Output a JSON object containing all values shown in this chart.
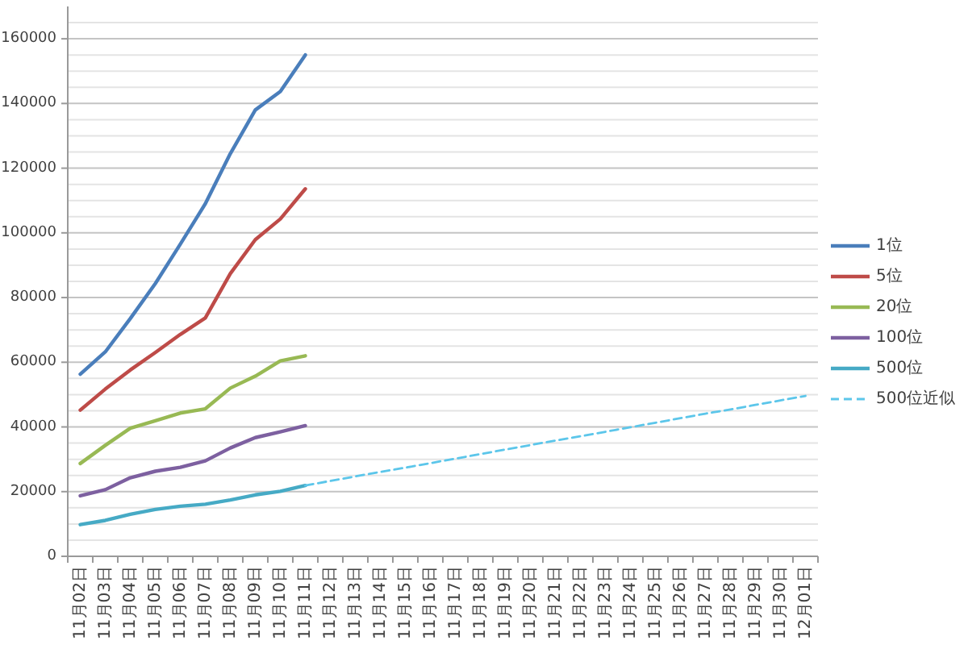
{
  "chart_data": {
    "type": "line",
    "categories": [
      "11月02日",
      "11月03日",
      "11月04日",
      "11月05日",
      "11月06日",
      "11月07日",
      "11月08日",
      "11月09日",
      "11月10日",
      "11月11日",
      "11月12日",
      "11月13日",
      "11月14日",
      "11月15日",
      "11月16日",
      "11月17日",
      "11月18日",
      "11月19日",
      "11月20日",
      "11月21日",
      "11月22日",
      "11月23日",
      "11月24日",
      "11月25日",
      "11月26日",
      "11月27日",
      "11月28日",
      "11月29日",
      "11月30日",
      "12月01日"
    ],
    "series": [
      {
        "name": "1位",
        "color": "#4a7ebb",
        "values": [
          56300,
          63200,
          73500,
          84300,
          96500,
          109000,
          124500,
          138000,
          143700,
          155000,
          null,
          null,
          null,
          null,
          null,
          null,
          null,
          null,
          null,
          null,
          null,
          null,
          null,
          null,
          null,
          null,
          null,
          null,
          null,
          null
        ]
      },
      {
        "name": "5位",
        "color": "#be4b48",
        "values": [
          45200,
          51700,
          57600,
          63000,
          68600,
          73700,
          87400,
          97900,
          104300,
          113600,
          null,
          null,
          null,
          null,
          null,
          null,
          null,
          null,
          null,
          null,
          null,
          null,
          null,
          null,
          null,
          null,
          null,
          null,
          null,
          null
        ]
      },
      {
        "name": "20位",
        "color": "#98b954",
        "values": [
          28700,
          34300,
          39600,
          41900,
          44300,
          45600,
          52000,
          55700,
          60400,
          62000,
          null,
          null,
          null,
          null,
          null,
          null,
          null,
          null,
          null,
          null,
          null,
          null,
          null,
          null,
          null,
          null,
          null,
          null,
          null,
          null
        ]
      },
      {
        "name": "100位",
        "color": "#7d60a0",
        "values": [
          18700,
          20600,
          24300,
          26300,
          27500,
          29500,
          33500,
          36700,
          38500,
          40400,
          null,
          null,
          null,
          null,
          null,
          null,
          null,
          null,
          null,
          null,
          null,
          null,
          null,
          null,
          null,
          null,
          null,
          null,
          null,
          null
        ]
      },
      {
        "name": "500位",
        "color": "#46aac5",
        "values": [
          9800,
          11100,
          13000,
          14500,
          15500,
          16100,
          17400,
          19000,
          20100,
          21900,
          null,
          null,
          null,
          null,
          null,
          null,
          null,
          null,
          null,
          null,
          null,
          null,
          null,
          null,
          null,
          null,
          null,
          null,
          null,
          null
        ]
      },
      {
        "name": "500位近似",
        "color": "#5cc6ea",
        "line_style": "dashed",
        "values": [
          null,
          null,
          null,
          null,
          null,
          null,
          null,
          null,
          null,
          21900,
          23300,
          24700,
          26100,
          27400,
          28800,
          30200,
          31600,
          33000,
          34400,
          35800,
          37100,
          38500,
          39900,
          41300,
          42700,
          44100,
          45400,
          46800,
          48200,
          49600
        ]
      }
    ],
    "ylim": [
      0,
      170000
    ],
    "yticks": [
      0,
      {
        "value": 5000,
        "label": null
      },
      {
        "value": 10000,
        "label": null
      },
      {
        "value": 15000,
        "label": null
      },
      20000,
      {
        "value": 25000,
        "label": null
      },
      {
        "value": 30000,
        "label": null
      },
      {
        "value": 35000,
        "label": null
      },
      40000,
      {
        "value": 45000,
        "label": null
      },
      {
        "value": 50000,
        "label": null
      },
      {
        "value": 55000,
        "label": null
      },
      60000,
      {
        "value": 65000,
        "label": null
      },
      {
        "value": 70000,
        "label": null
      },
      {
        "value": 75000,
        "label": null
      },
      80000,
      {
        "value": 85000,
        "label": null
      },
      {
        "value": 90000,
        "label": null
      },
      {
        "value": 95000,
        "label": null
      },
      100000,
      {
        "value": 105000,
        "label": null
      },
      {
        "value": 110000,
        "label": null
      },
      {
        "value": 115000,
        "label": null
      },
      120000,
      {
        "value": 125000,
        "label": null
      },
      {
        "value": 130000,
        "label": null
      },
      {
        "value": 135000,
        "label": null
      },
      140000,
      {
        "value": 145000,
        "label": null
      },
      {
        "value": 150000,
        "label": null
      },
      {
        "value": 155000,
        "label": null
      },
      160000,
      {
        "value": 165000,
        "label": null
      }
    ],
    "grid": "y",
    "legend": "right",
    "line_style": "solid"
  }
}
